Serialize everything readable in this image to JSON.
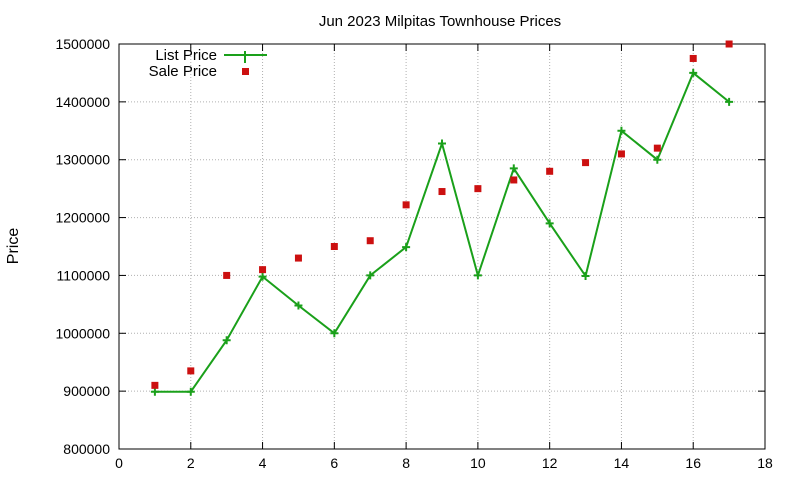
{
  "chart_data": {
    "type": "line",
    "title": "Jun 2023 Milpitas Townhouse Prices",
    "xlabel": "",
    "ylabel": "Price",
    "xlim": [
      0,
      18
    ],
    "ylim": [
      800000,
      1500000
    ],
    "x_ticks": [
      0,
      2,
      4,
      6,
      8,
      10,
      12,
      14,
      16,
      18
    ],
    "y_ticks": [
      800000,
      900000,
      1000000,
      1100000,
      1200000,
      1300000,
      1400000,
      1500000
    ],
    "grid": true,
    "legend_position": "top-left",
    "series": [
      {
        "name": "List Price",
        "style": "line-with-plus-markers",
        "color": "#1aa01a",
        "x": [
          1,
          2,
          3,
          4,
          5,
          6,
          7,
          8,
          9,
          10,
          11,
          12,
          13,
          14,
          15,
          16,
          17
        ],
        "values": [
          899000,
          899000,
          988000,
          1098000,
          1048000,
          1000000,
          1100000,
          1149000,
          1328000,
          1100000,
          1285000,
          1190000,
          1099000,
          1350000,
          1300000,
          1450000,
          1400000
        ]
      },
      {
        "name": "Sale Price",
        "style": "square-markers",
        "color": "#cc1010",
        "x": [
          1,
          2,
          3,
          4,
          5,
          6,
          7,
          8,
          9,
          10,
          11,
          12,
          13,
          14,
          15,
          16,
          17
        ],
        "values": [
          910000,
          935000,
          1100000,
          1110000,
          1130000,
          1150000,
          1160000,
          1222000,
          1245000,
          1250000,
          1265000,
          1280000,
          1295000,
          1310000,
          1320000,
          1475000,
          1500000
        ]
      }
    ]
  }
}
